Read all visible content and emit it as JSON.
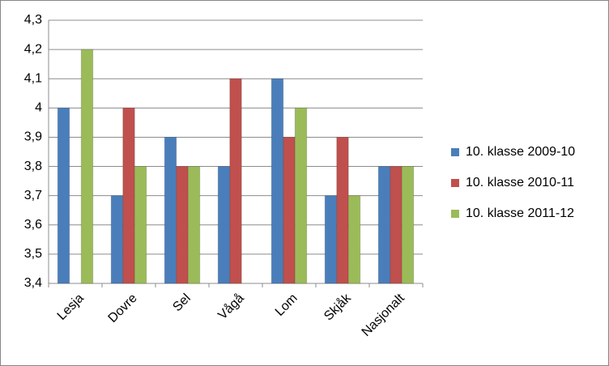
{
  "chart_data": {
    "type": "bar",
    "categories": [
      "Lesja",
      "Dovre",
      "Sel",
      "Vågå",
      "Lom",
      "Skjåk",
      "Nasjonalt"
    ],
    "series": [
      {
        "name": "10. klasse 2009-10",
        "color": "#4a7ebb",
        "values": [
          4.0,
          3.7,
          3.9,
          3.8,
          4.1,
          3.7,
          3.8
        ]
      },
      {
        "name": "10. klasse 2010-11",
        "color": "#c0504d",
        "values": [
          null,
          4.0,
          3.8,
          4.1,
          3.9,
          3.9,
          3.8
        ]
      },
      {
        "name": "10. klasse 2011-12",
        "color": "#9bbb59",
        "values": [
          4.2,
          3.8,
          3.8,
          null,
          4.0,
          3.7,
          3.8
        ]
      }
    ],
    "ylim": [
      3.4,
      4.3
    ],
    "yticks": [
      {
        "value": 3.4,
        "label": "3,4"
      },
      {
        "value": 3.5,
        "label": "3,5"
      },
      {
        "value": 3.6,
        "label": "3,6"
      },
      {
        "value": 3.7,
        "label": "3,7"
      },
      {
        "value": 3.8,
        "label": "3,8"
      },
      {
        "value": 3.9,
        "label": "3,9"
      },
      4,
      {
        "value": 4.1,
        "label": "4,1"
      },
      {
        "value": 4.2,
        "label": "4,2"
      },
      {
        "value": 4.3,
        "label": "4,3"
      }
    ],
    "grid": true,
    "legend": "right"
  }
}
